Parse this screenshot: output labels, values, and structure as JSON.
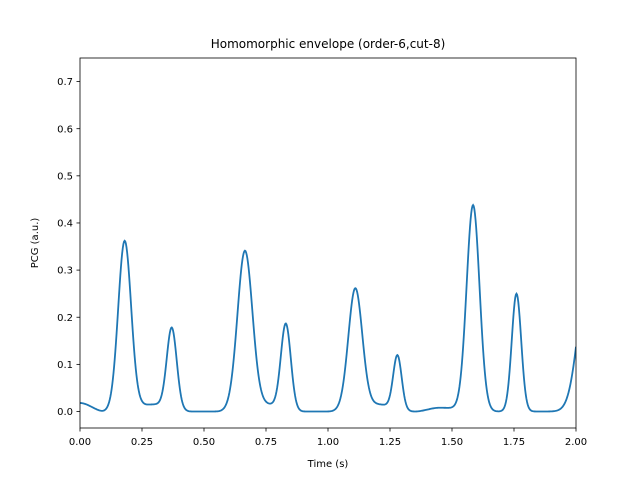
{
  "chart_data": {
    "type": "line",
    "title": "Homomorphic envelope (order-6,cut-8)",
    "xlabel": "Time (s)",
    "ylabel": "PCG (a.u.)",
    "xlim": [
      0,
      2.0
    ],
    "ylim": [
      -0.035,
      0.75
    ],
    "xticks": [
      0,
      0.25,
      0.5,
      0.75,
      1.0,
      1.25,
      1.5,
      1.75,
      2.0
    ],
    "xtick_labels": [
      "0.00",
      "0.25",
      "0.50",
      "0.75",
      "1.00",
      "1.25",
      "1.50",
      "1.75",
      "2.00"
    ],
    "yticks": [
      0.0,
      0.1,
      0.2,
      0.3,
      0.4,
      0.5,
      0.6,
      0.7
    ],
    "ytick_labels": [
      "0.0",
      "0.1",
      "0.2",
      "0.3",
      "0.4",
      "0.5",
      "0.6",
      "0.7"
    ],
    "grid": false,
    "series": [
      {
        "color": "#1f77b4",
        "baseline": [
          [
            0.0,
            0.018
          ],
          [
            0.1,
            0.0
          ],
          [
            0.3,
            0.015
          ],
          [
            0.45,
            0.0
          ],
          [
            0.55,
            0.0
          ],
          [
            0.75,
            0.015
          ],
          [
            0.9,
            0.0
          ],
          [
            1.0,
            0.0
          ],
          [
            1.2,
            0.015
          ],
          [
            1.35,
            0.0
          ],
          [
            1.45,
            0.008
          ],
          [
            1.68,
            0.0
          ],
          [
            1.82,
            0.0
          ],
          [
            2.0,
            0.0
          ]
        ],
        "peaks": [
          {
            "x": 0.18,
            "y": 0.357,
            "width": 0.026
          },
          {
            "x": 0.37,
            "y": 0.17,
            "width": 0.02
          },
          {
            "x": 0.665,
            "y": 0.332,
            "width": 0.03
          },
          {
            "x": 0.83,
            "y": 0.18,
            "width": 0.02
          },
          {
            "x": 1.11,
            "y": 0.253,
            "width": 0.028
          },
          {
            "x": 1.28,
            "y": 0.113,
            "width": 0.017
          },
          {
            "x": 1.585,
            "y": 0.435,
            "width": 0.026
          },
          {
            "x": 1.76,
            "y": 0.25,
            "width": 0.019
          },
          {
            "x": 2.05,
            "y": 0.3,
            "width": 0.04
          }
        ]
      }
    ]
  }
}
